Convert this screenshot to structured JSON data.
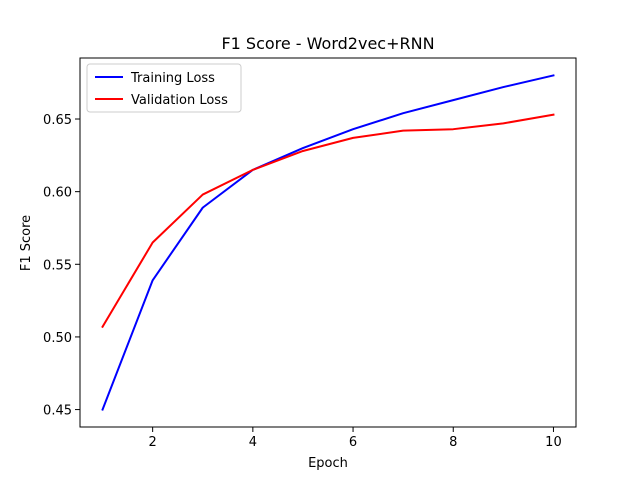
{
  "chart_data": {
    "type": "line",
    "title": "F1 Score - Word2vec+RNN",
    "xlabel": "Epoch",
    "ylabel": "F1 Score",
    "x": [
      1,
      2,
      3,
      4,
      5,
      6,
      7,
      8,
      9,
      10
    ],
    "xlim": [
      0.55,
      10.45
    ],
    "ylim": [
      0.438,
      0.692
    ],
    "xticks": [
      2,
      4,
      6,
      8,
      10
    ],
    "yticks": [
      0.45,
      0.5,
      0.55,
      0.6,
      0.65
    ],
    "xtick_labels": [
      "2",
      "4",
      "6",
      "8",
      "10"
    ],
    "ytick_labels": [
      "0.45",
      "0.50",
      "0.55",
      "0.60",
      "0.65"
    ],
    "grid": false,
    "legend_position": "top-left",
    "series": [
      {
        "name": "Training Loss",
        "color": "#0000ff",
        "values": [
          0.45,
          0.539,
          0.589,
          0.615,
          0.63,
          0.643,
          0.654,
          0.663,
          0.672,
          0.68
        ]
      },
      {
        "name": "Validation Loss",
        "color": "#ff0000",
        "values": [
          0.507,
          0.565,
          0.598,
          0.615,
          0.628,
          0.637,
          0.642,
          0.643,
          0.647,
          0.653
        ]
      }
    ]
  }
}
